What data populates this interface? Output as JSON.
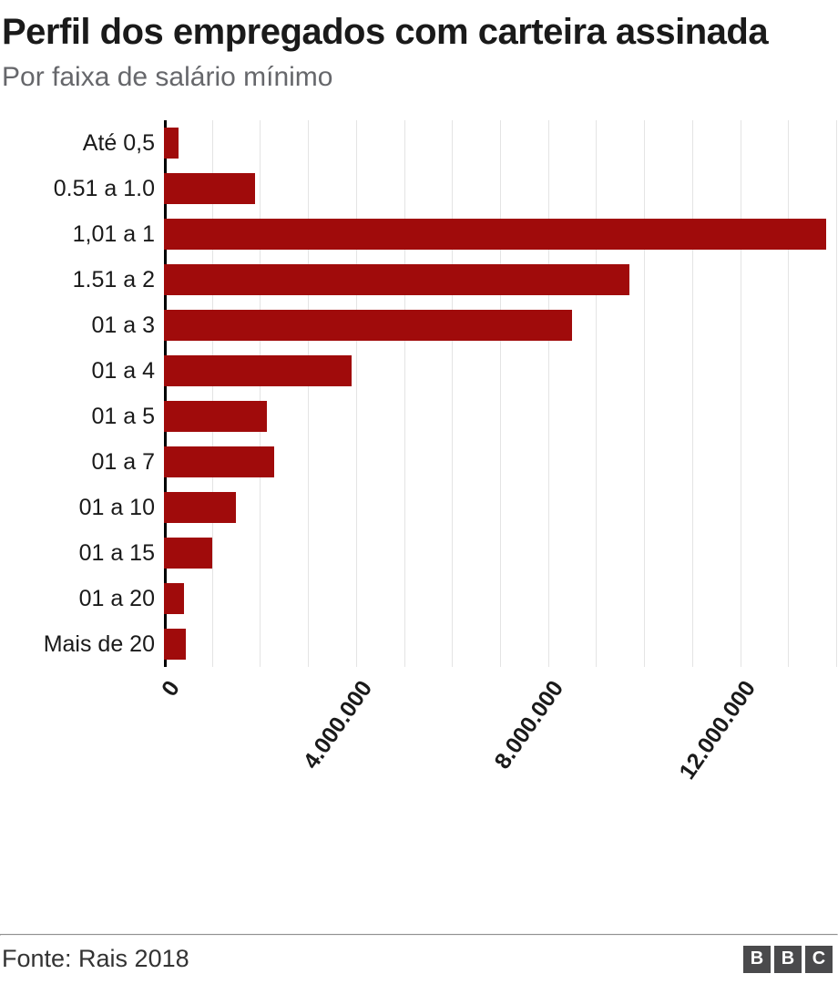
{
  "header": {
    "title": "Perfil dos empregados com carteira assinada",
    "subtitle": "Por faixa de salário mínimo"
  },
  "chart_data": {
    "type": "bar",
    "orientation": "horizontal",
    "title": "Perfil dos empregados com carteira assinada",
    "subtitle": "Por faixa de salário mínimo",
    "categories": [
      "Até 0,5",
      "0.51 a 1.0",
      "1,01 a 1",
      "1.51 a 2",
      "01 a 3",
      "01 a 4",
      "01 a 5",
      "01 a 7",
      "01 a 10",
      "01 a 15",
      "01 a 20",
      "Mais de 20"
    ],
    "values": [
      300000,
      1900000,
      13800000,
      9700000,
      8500000,
      3900000,
      2150000,
      2300000,
      1500000,
      1000000,
      420000,
      450000
    ],
    "xlim": [
      0,
      14000000
    ],
    "gridline_interval": 1000000,
    "grid": true,
    "bar_color": "#a00b0b",
    "gridline_color": "#e4e4e4",
    "axis_color": "#000000",
    "x_ticks": [
      {
        "value": 0,
        "label": "0"
      },
      {
        "value": 4000000,
        "label": "4.000.000"
      },
      {
        "value": 8000000,
        "label": "8.000.000"
      },
      {
        "value": 12000000,
        "label": "12.000.000"
      }
    ]
  },
  "footer": {
    "source": "Fonte: Rais 2018",
    "logo_letters": [
      "B",
      "B",
      "C"
    ],
    "logo_block_color": "#4a4a4c"
  }
}
